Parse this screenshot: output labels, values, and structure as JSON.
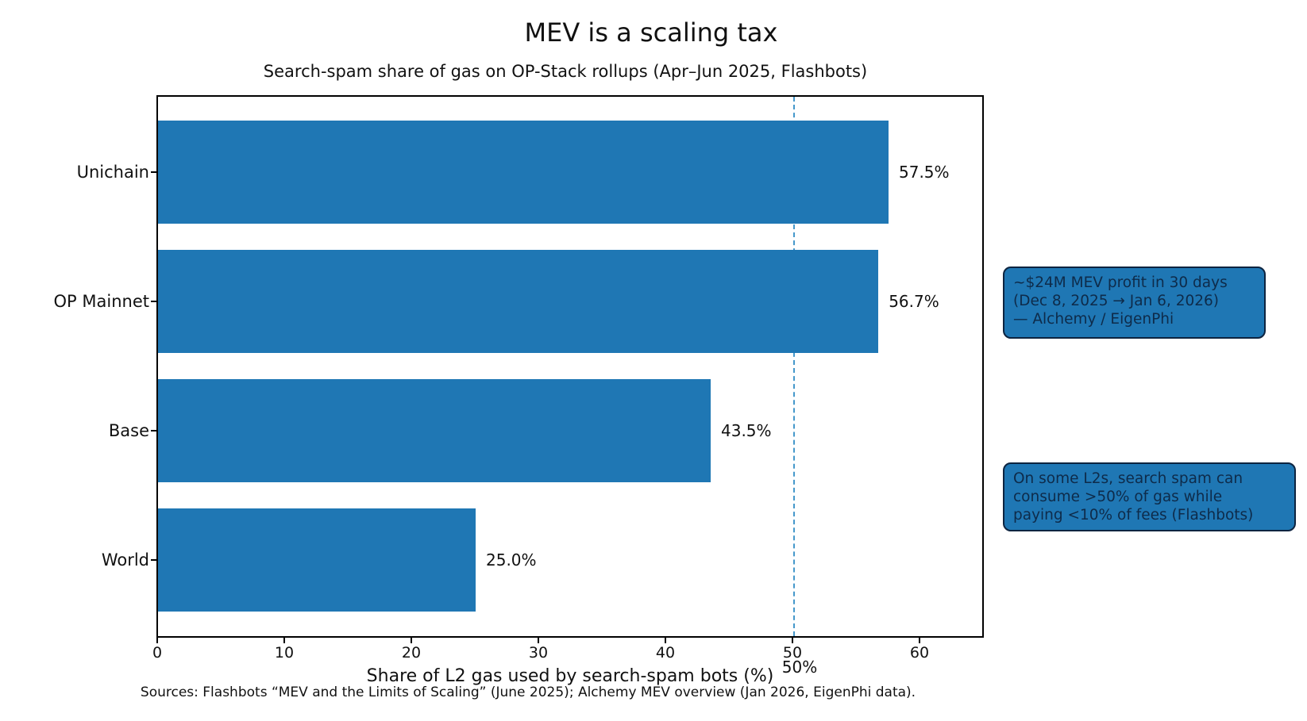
{
  "chart_data": {
    "type": "bar",
    "orientation": "horizontal",
    "title": "MEV is a scaling tax",
    "subtitle": "Search-spam share of gas on OP-Stack rollups (Apr–Jun 2025, Flashbots)",
    "categories": [
      "Unichain",
      "OP Mainnet",
      "Base",
      "World"
    ],
    "values": [
      57.5,
      56.7,
      43.5,
      25.0
    ],
    "value_labels": [
      "57.5%",
      "56.7%",
      "43.5%",
      "25.0%"
    ],
    "xlabel": "Share of L2 gas used by search-spam bots (%)",
    "xlim": [
      0,
      65
    ],
    "xticks": [
      0,
      10,
      20,
      30,
      40,
      50,
      60
    ],
    "grid": false,
    "bar_color": "#1f77b4",
    "threshold": {
      "value": 50,
      "label": "50%",
      "line_color": "#4598cb",
      "line_style": "dashed"
    }
  },
  "annotations": {
    "box1": {
      "lines": [
        "~$24M MEV profit in 30 days",
        "(Dec 8, 2025 → Jan 6, 2026)",
        "— Alchemy / EigenPhi"
      ],
      "bg_color": "#1f77b4",
      "text_color": "#0e2b4a"
    },
    "box2": {
      "lines": [
        "On some L2s, search spam can",
        "consume >50% of gas while",
        "paying <10% of fees (Flashbots)"
      ],
      "bg_color": "#1f77b4",
      "text_color": "#0e2b4a"
    }
  },
  "footer": {
    "sources": "Sources: Flashbots “MEV and the Limits of Scaling” (June 2025); Alchemy MEV overview (Jan 2026, EigenPhi data)."
  }
}
